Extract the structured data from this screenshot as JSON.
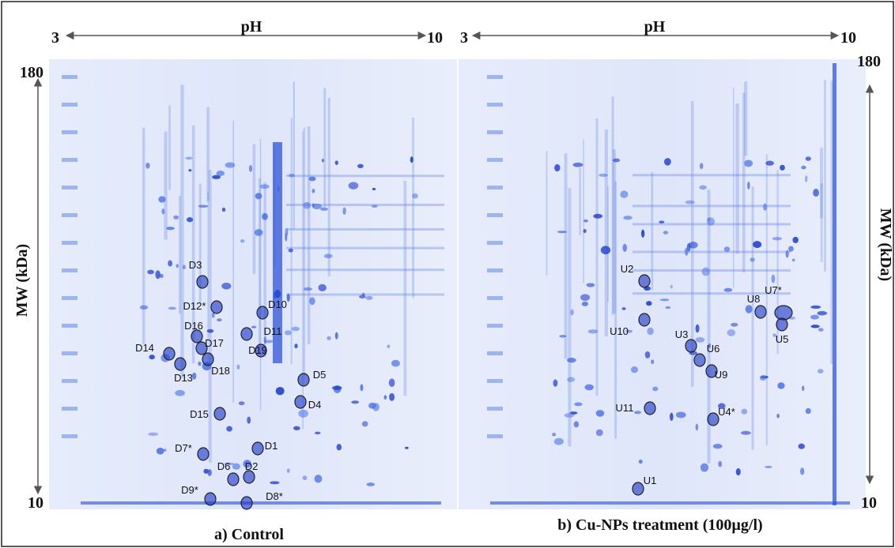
{
  "panels": [
    {
      "caption": "a) Control",
      "ph_label": "pH",
      "ph_start": "3",
      "ph_end": "10",
      "mw_top": "180",
      "mw_bottom": "10",
      "mw_label": "MW (kDa)",
      "spots": [
        "D3",
        "D12*",
        "D10",
        "D16",
        "D11",
        "D17",
        "D14",
        "D19",
        "D18",
        "D13",
        "D5",
        "D4",
        "D15",
        "D1",
        "D7*",
        "D6",
        "D2",
        "D9*",
        "D8*"
      ]
    },
    {
      "caption": "b) Cu-NPs treatment (100µg/l)",
      "ph_label": "pH",
      "ph_start": "3",
      "ph_end": "10",
      "mw_top": "180",
      "mw_bottom": "10",
      "mw_label": "MW (kDa)",
      "spots": [
        "U2",
        "U7*",
        "U8",
        "U10",
        "U5",
        "U3",
        "U6",
        "U9",
        "U11",
        "U4*",
        "U1"
      ]
    }
  ]
}
